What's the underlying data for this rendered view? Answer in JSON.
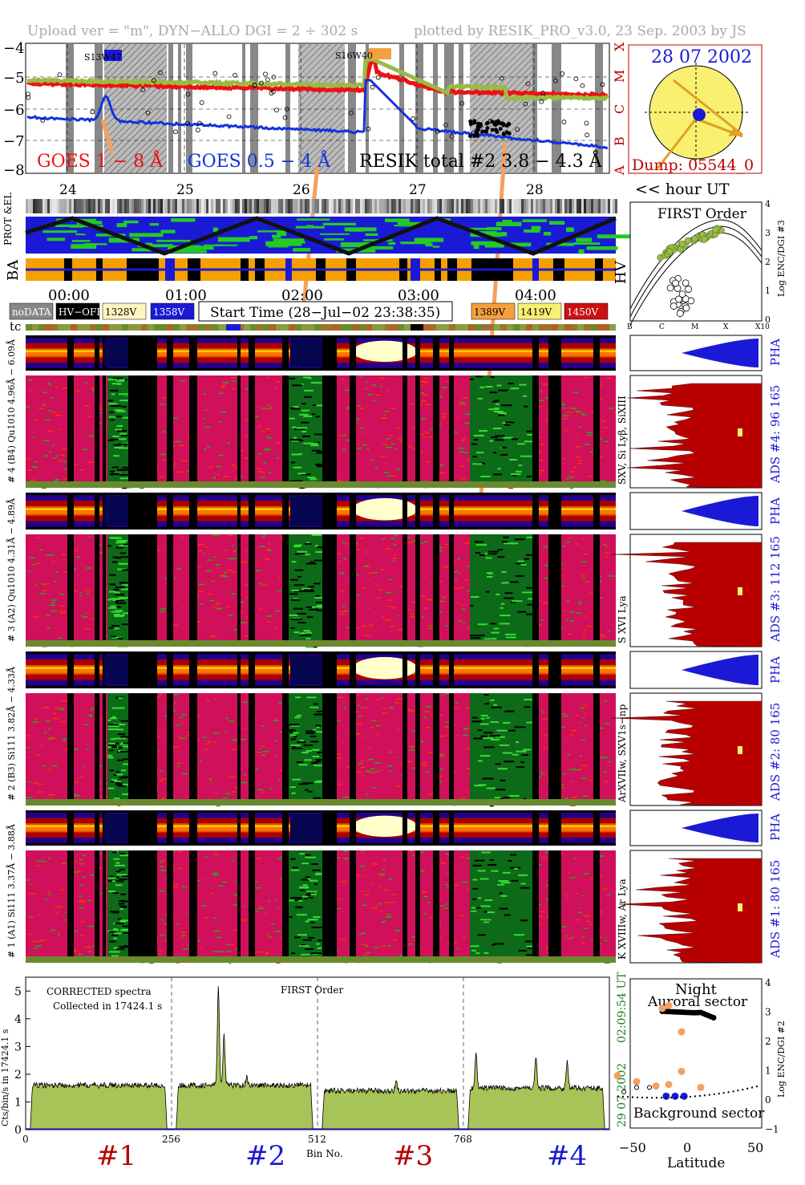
{
  "header": {
    "upload": "Upload ver = \"m\", DYN−ALLO DGI =   2 ÷ 302 s",
    "plotted": "plotted by RESIK_PRO_v3.0, 23 Sep. 2003 by JS"
  },
  "goes": {
    "yticks": [
      "−4",
      "−5",
      "−6",
      "−7",
      "−8"
    ],
    "classes": [
      "X",
      "M",
      "C",
      "B",
      "A"
    ],
    "flare1": "S13W47",
    "flare2": "S16W40",
    "legend_red": "GOES 1 − 8 Å",
    "legend_blue": "GOES 0.5 − 4 Å",
    "legend_black": "RESIK total #2  3.8 − 4.3 Å"
  },
  "sun": {
    "date": "28 07 2002",
    "dump": "Dump: 05544_0"
  },
  "days": [
    "24",
    "25",
    "26",
    "27",
    "28"
  ],
  "hour_label": "<< hour UT",
  "prot_label": "PROT &EL",
  "ba_label": "BA",
  "hv_label": "HV",
  "times": [
    "00:00",
    "01:00",
    "02:00",
    "03:00",
    "04:00"
  ],
  "voltage_legend": [
    {
      "label": "noDATA",
      "bg": "#888888",
      "fg": "#ffffff"
    },
    {
      "label": "HV−OFF",
      "bg": "#000000",
      "fg": "#ffffff"
    },
    {
      "label": "1328V",
      "bg": "#fff5c0",
      "fg": "#000000"
    },
    {
      "label": "1358V",
      "bg": "#1a1ad6",
      "fg": "#ffffff"
    },
    {
      "label": "1389V",
      "bg": "#f5a040",
      "fg": "#000000"
    },
    {
      "label": "1419V",
      "bg": "#f8f070",
      "fg": "#000000"
    },
    {
      "label": "1450V",
      "bg": "#cc1010",
      "fg": "#ffffff"
    }
  ],
  "start_time": "Start Time (28−Jul−02 23:38:35)",
  "tc_label": "tc",
  "first_order": {
    "title": "FIRST Order",
    "xticks": [
      "B",
      "C",
      "M",
      "X",
      "X10"
    ],
    "yticks": [
      "0",
      "1",
      "2",
      "3",
      "4"
    ],
    "ylabel": "Log ENC/DGI #3"
  },
  "channels": [
    {
      "pha_label": "# 4 (B4) Qu1010 4.96Å − 6.09Å",
      "spec_label": "SXV, Si Lyβ, SiXIII",
      "ads": "ADS #4:   96 165",
      "pha": "PHA"
    },
    {
      "pha_label": "# 3 (A2) Qu1010  4.31Å − 4.89Å",
      "spec_label": "S XVI Lya",
      "ads": "ADS #3:   112 165",
      "pha": "PHA"
    },
    {
      "pha_label": "# 2 (B3) Si111  3.82Å − 4.33Å",
      "spec_label": "ArXVIIw, SXV1s−np",
      "ads": "ADS #2:   80 165",
      "pha": "PHA"
    },
    {
      "pha_label": "# 1 (A1) Si111  3.37Å − 3.88Å",
      "spec_label": "K XVIIIw, Ar Lya",
      "ads": "ADS #1:   80 165",
      "pha": "PHA"
    }
  ],
  "bottom": {
    "corrected": "CORRECTED spectra",
    "collected": "Collected in 17424.1 s",
    "first_order": "FIRST Order",
    "ylabel": "Cts/bin/s in 17424.1 s",
    "yticks": [
      "0",
      "1",
      "2",
      "3",
      "4",
      "5"
    ],
    "xticks": [
      "0",
      "256",
      "512",
      "768"
    ],
    "xlabel": "Bin No.",
    "stamp_date": "29 07 2002",
    "stamp_time": "02:09:54 UT",
    "ch_labels": [
      "#1",
      "#2",
      "#3",
      "#4"
    ]
  },
  "latitude": {
    "night": "Night",
    "auroral": "Auroral sector",
    "background": "Background sector",
    "xticks": [
      "−50",
      "0",
      "50"
    ],
    "xlabel": "Latitude",
    "yticks": [
      "−1",
      "0",
      "1",
      "2",
      "3",
      "4"
    ],
    "ylabel": "Log ENC/DGI #2"
  },
  "colors": {
    "goes_red": "#ee1111",
    "goes_blue": "#1133dd",
    "green": "#99bb44",
    "orange": "#f5a060",
    "dark_red": "#b80000",
    "blue": "#1a1ad6"
  },
  "chart_data": {
    "type": "area",
    "title": "",
    "xlabel": "Bin No.",
    "ylabel": "Cts/bin/s in 17424.1 s",
    "xlim": [
      0,
      1024
    ],
    "ylim": [
      0,
      5.5
    ],
    "segments": [
      {
        "name": "#1",
        "x_start": 0,
        "x_end": 256,
        "plateau": 1.6
      },
      {
        "name": "#2",
        "x_start": 256,
        "x_end": 512,
        "plateau": 1.6,
        "peaks": [
          {
            "x": 338,
            "y": 5.2
          },
          {
            "x": 348,
            "y": 3.4
          },
          {
            "x": 388,
            "y": 1.9
          }
        ]
      },
      {
        "name": "#3",
        "x_start": 512,
        "x_end": 768,
        "plateau": 1.4,
        "peaks": [
          {
            "x": 650,
            "y": 1.7
          }
        ]
      },
      {
        "name": "#4",
        "x_start": 768,
        "x_end": 1024,
        "plateau": 1.5,
        "peaks": [
          {
            "x": 790,
            "y": 2.7
          },
          {
            "x": 895,
            "y": 2.6
          },
          {
            "x": 950,
            "y": 2.5
          }
        ]
      }
    ]
  }
}
